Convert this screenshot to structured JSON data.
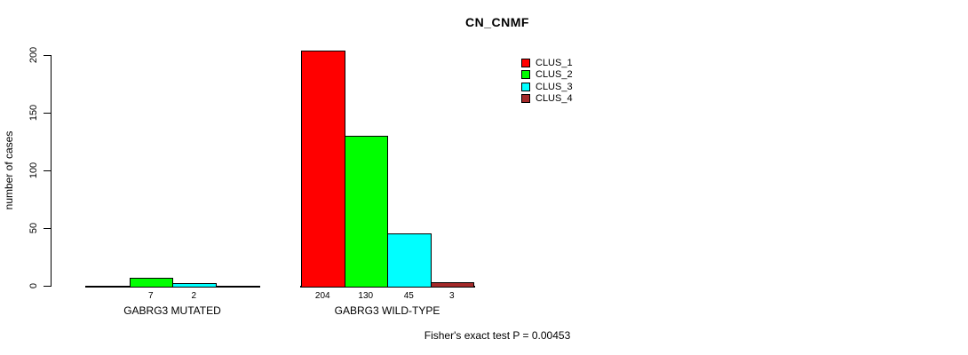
{
  "chart_data": {
    "type": "bar",
    "title": "CN_CNMF",
    "xlabel": "",
    "ylabel": "number of cases",
    "ylim": [
      0,
      200
    ],
    "yticks": [
      "0",
      "50",
      "100",
      "150",
      "200"
    ],
    "grid": false,
    "legend_position": "top-right",
    "series": [
      {
        "name": "CLUS_1",
        "color": "#ff0000"
      },
      {
        "name": "CLUS_2",
        "color": "#00ff00"
      },
      {
        "name": "CLUS_3",
        "color": "#00ffff"
      },
      {
        "name": "CLUS_4",
        "color": "#a52a2a"
      }
    ],
    "groups": [
      {
        "label": "GABRG3 MUTATED",
        "values": [
          0,
          7,
          2,
          0
        ],
        "bar_labels": [
          "",
          "7",
          "2",
          ""
        ]
      },
      {
        "label": "GABRG3 WILD-TYPE",
        "values": [
          204,
          130,
          45,
          3
        ],
        "bar_labels": [
          "204",
          "130",
          "45",
          "3"
        ]
      }
    ],
    "annotation": "Fisher's exact test P = 0.00453"
  }
}
